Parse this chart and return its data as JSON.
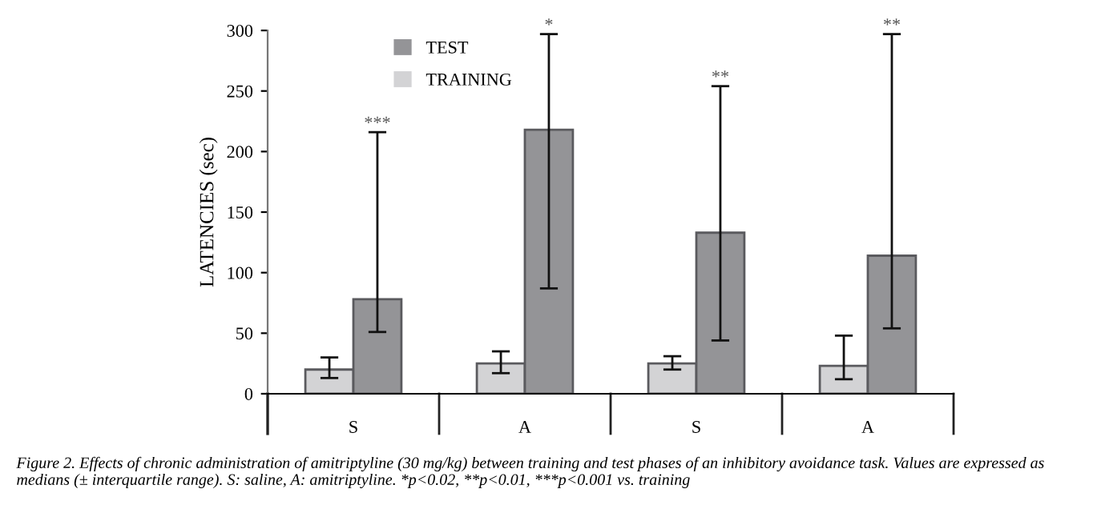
{
  "chart_data": {
    "type": "bar",
    "ylabel": "LATENCIES (sec)",
    "categories": [
      "S",
      "A",
      "S",
      "A"
    ],
    "series": [
      {
        "name": "TRAINING",
        "color": "#d3d3d5",
        "values": [
          20,
          25,
          25,
          23
        ],
        "errors": [
          [
            13,
            30
          ],
          [
            17,
            35
          ],
          [
            20,
            31
          ],
          [
            12,
            48
          ]
        ]
      },
      {
        "name": "TEST",
        "color": "#949497",
        "values": [
          78,
          218,
          133,
          114
        ],
        "errors": [
          [
            51,
            216
          ],
          [
            87,
            297
          ],
          [
            44,
            254
          ],
          [
            54,
            297
          ]
        ]
      }
    ],
    "ylim": [
      0,
      300
    ],
    "yticks": [
      0,
      50,
      100,
      150,
      200,
      250,
      300
    ],
    "grid": false,
    "legend": "top",
    "annotations": [
      "***",
      "*",
      "**",
      "**",
      "Figure 2. Effects of chronic administration of amitriptyline (30 mg/kg) between training and test phases of an inhibitory avoidance task. Values are expressed as medians (± interquartile range). S: saline, A: amitriptyline. *p<0.02, **p<0.01, ***p<0.001 vs. training"
    ]
  }
}
